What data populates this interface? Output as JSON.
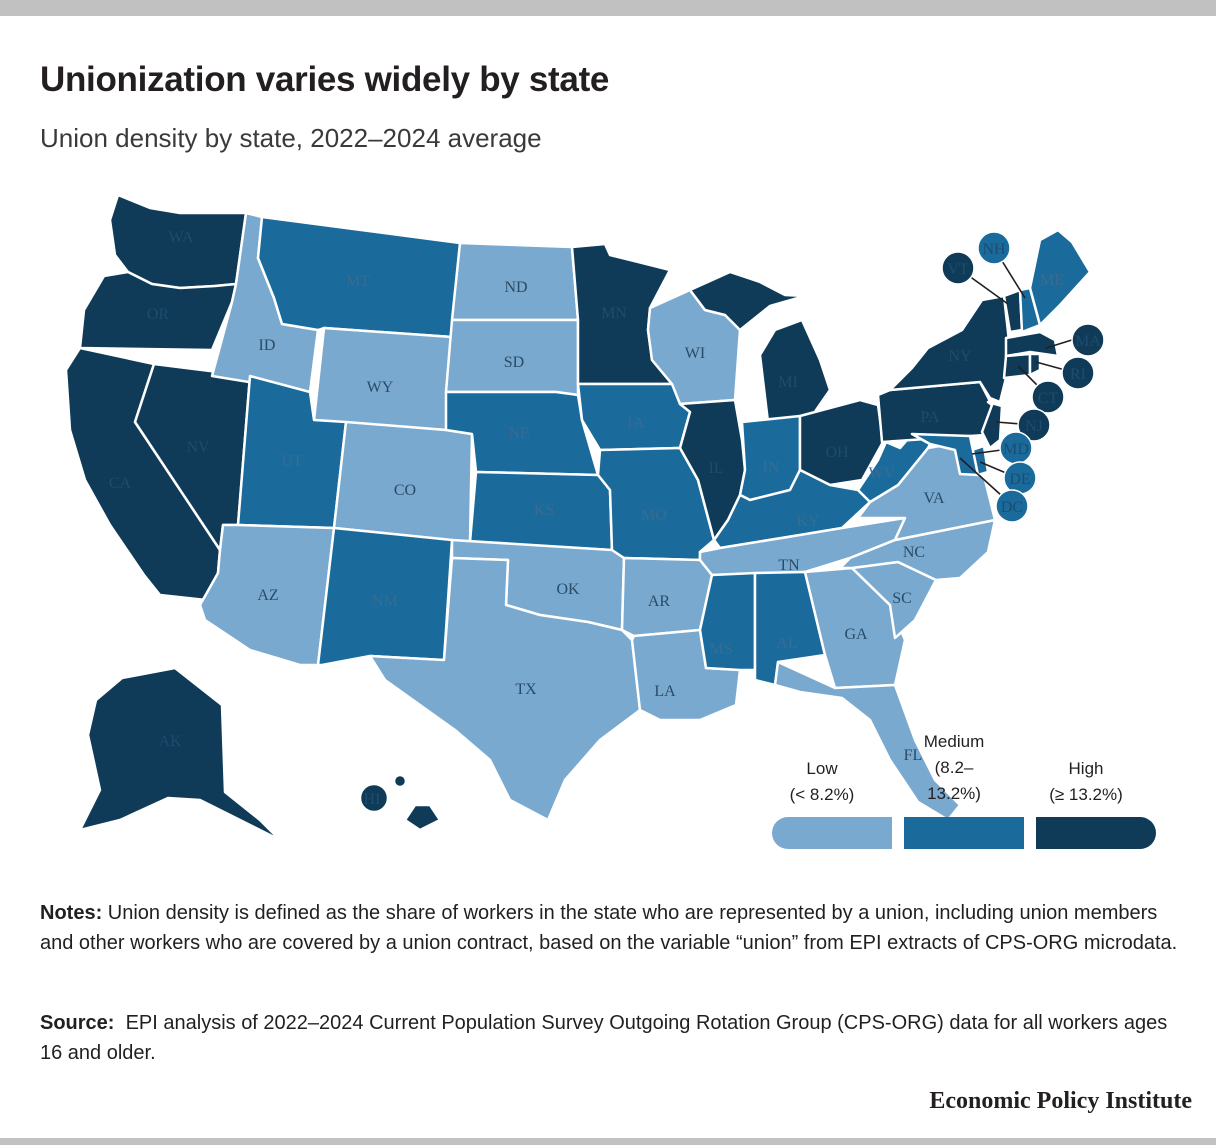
{
  "header": {
    "title": "Unionization varies widely by state",
    "subtitle": "Union density by state, 2022–2024 average"
  },
  "colors": {
    "low": "#7aa9d0",
    "medium": "#1a6b9c",
    "high": "#0f3b58"
  },
  "legend": {
    "low": {
      "name": "Low",
      "range": "(< 8.2%)"
    },
    "medium": {
      "name": "Medium",
      "range_line1": "(8.2–",
      "range_line2": "13.2%)"
    },
    "high": {
      "name": "High",
      "range": "(≥ 13.2%)"
    }
  },
  "map_data": {
    "type": "choropleth",
    "metric": "union density (share of workers represented by a union)",
    "thresholds": {
      "low_below": "8.2%",
      "high_at_or_above": "13.2%"
    },
    "states": {
      "WA": "high",
      "OR": "high",
      "CA": "high",
      "NV": "high",
      "ID": "low",
      "MT": "medium",
      "WY": "low",
      "UT": "medium",
      "AZ": "low",
      "CO": "low",
      "NM": "medium",
      "ND": "low",
      "SD": "low",
      "NE": "medium",
      "KS": "medium",
      "OK": "low",
      "TX": "low",
      "MN": "high",
      "IA": "medium",
      "MO": "medium",
      "AR": "low",
      "LA": "low",
      "WI": "low",
      "IL": "high",
      "MI": "high",
      "IN": "medium",
      "OH": "high",
      "KY": "medium",
      "TN": "low",
      "MS": "medium",
      "AL": "medium",
      "GA": "low",
      "FL": "low",
      "SC": "low",
      "NC": "low",
      "VA": "low",
      "WV": "medium",
      "PA": "high",
      "NY": "high",
      "VT": "high",
      "NH": "medium",
      "ME": "medium",
      "MA": "high",
      "RI": "high",
      "CT": "high",
      "NJ": "high",
      "DE": "medium",
      "MD": "medium",
      "DC": "medium",
      "AK": "high",
      "HI": "high"
    }
  },
  "notes": {
    "label": "Notes:",
    "text": " Union density is defined as the share of workers in the state who are represented by a union, including union members and other workers who are covered by a union contract, based on the variable “union” from EPI extracts of CPS-ORG microdata."
  },
  "source": {
    "label": "Source:",
    "text": "  EPI analysis of 2022–2024 Current Population Survey Outgoing Rotation Group (CPS-ORG) data for all workers ages 16 and older."
  },
  "credit": "Economic Policy Institute"
}
